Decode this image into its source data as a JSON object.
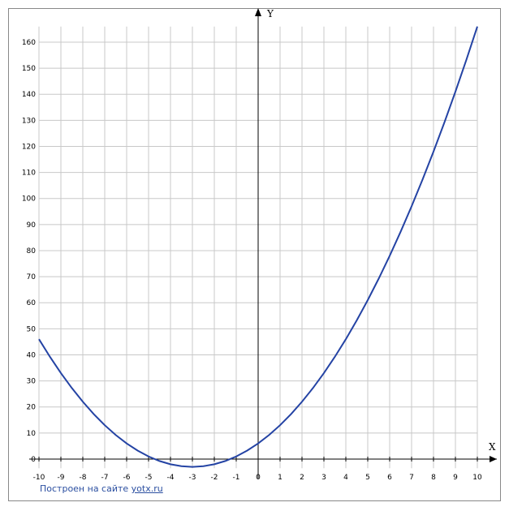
{
  "chart_data": {
    "type": "line",
    "x_label": "X",
    "y_label": "Y",
    "x": [
      -10,
      -9.5,
      -9,
      -8.5,
      -8,
      -7.5,
      -7,
      -6.5,
      -6,
      -5.5,
      -5,
      -4.5,
      -4,
      -3.5,
      -3,
      -2.5,
      -2,
      -1.5,
      -1,
      -0.5,
      0,
      0.5,
      1,
      1.5,
      2,
      2.5,
      3,
      3.5,
      4,
      4.5,
      5,
      5.5,
      6,
      6.5,
      7,
      7.5,
      8,
      8.5,
      9,
      9.5,
      10
    ],
    "series": [
      {
        "color": "#2443a4",
        "values": [
          46,
          39.25,
          33,
          27.25,
          22,
          17.25,
          13,
          9.25,
          6,
          3.25,
          1,
          -0.75,
          -2,
          -2.75,
          -3,
          -2.75,
          -2,
          -0.75,
          1,
          3.25,
          6,
          9.25,
          13,
          17.25,
          22,
          27.25,
          33,
          39.25,
          46,
          53.25,
          61,
          69.25,
          78,
          87.25,
          97,
          107.25,
          118,
          129.25,
          141,
          153.25,
          166
        ]
      }
    ],
    "xlim": [
      -10,
      10
    ],
    "ylim": [
      -3.5,
      166
    ],
    "xticks": [
      -10,
      -9,
      -8,
      -7,
      -6,
      -5,
      -4,
      -3,
      -2,
      -1,
      0,
      1,
      2,
      3,
      4,
      5,
      6,
      7,
      8,
      9,
      10
    ],
    "yticks": [
      0,
      10,
      20,
      30,
      40,
      50,
      60,
      70,
      80,
      90,
      100,
      110,
      120,
      130,
      140,
      150,
      160
    ],
    "grid": true
  },
  "footer": {
    "text": "Построен на сайте",
    "link": "yotx.ru"
  }
}
